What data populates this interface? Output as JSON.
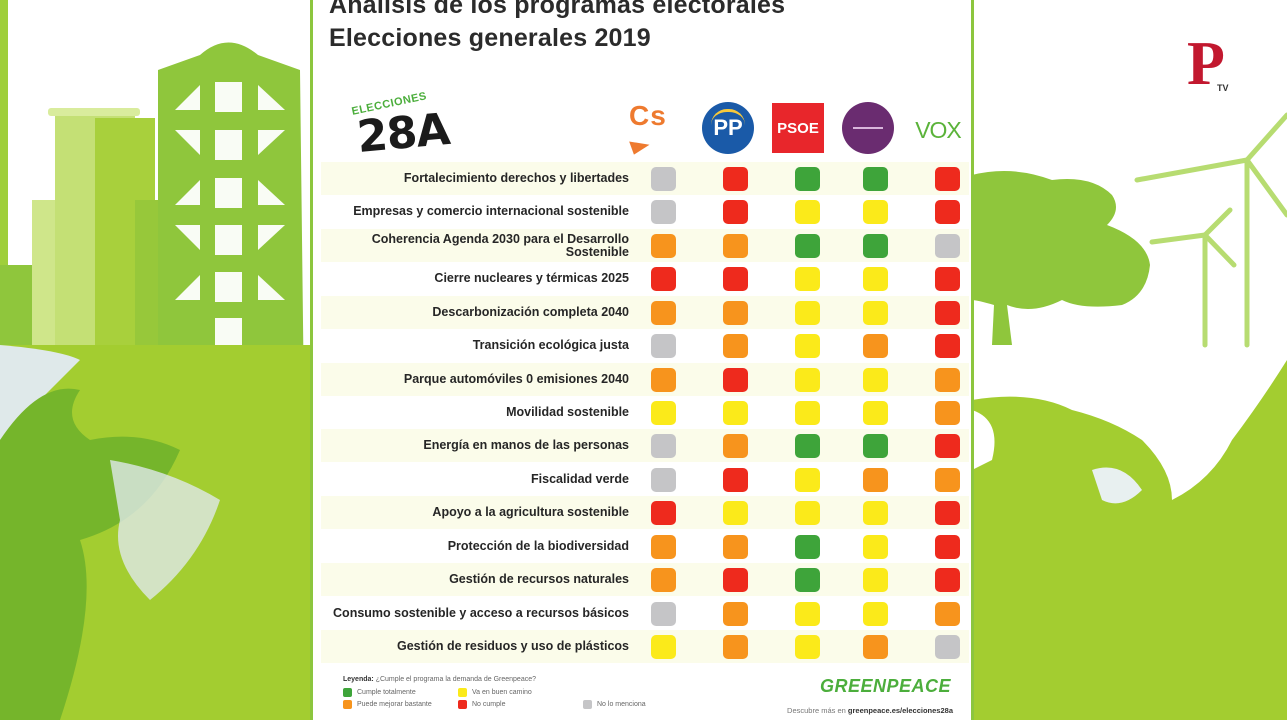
{
  "title": {
    "line1": "Análisis de los programas electorales",
    "line2": "Elecciones generales 2019"
  },
  "badge": {
    "small": "ELECCIONES",
    "big": "28A"
  },
  "parties": [
    {
      "id": "cs",
      "label": "Cs",
      "color": "#ee7a2f"
    },
    {
      "id": "pp",
      "label": "PP",
      "color": "#1a5aa8"
    },
    {
      "id": "psoe",
      "label": "PSOE",
      "color": "#e8262b"
    },
    {
      "id": "podemos",
      "label": "PODEMOS",
      "color": "#6a2c70"
    },
    {
      "id": "vox",
      "label": "VOX",
      "color": "#5bb33a"
    }
  ],
  "ratings": {
    "green": {
      "label": "Cumple totalmente",
      "color": "#3ea43a"
    },
    "yellow": {
      "label": "Va en buen camino",
      "color": "#fbea1a"
    },
    "orange": {
      "label": "Puede mejorar bastante",
      "color": "#f7941d"
    },
    "red": {
      "label": "No cumple",
      "color": "#ee2a1d"
    },
    "gray": {
      "label": "No lo menciona",
      "color": "#c5c5c7"
    }
  },
  "chart_data": {
    "type": "table",
    "title": "Análisis de los programas electorales — Elecciones generales 2019",
    "columns": [
      "Cs",
      "PP",
      "PSOE",
      "Podemos",
      "VOX"
    ],
    "rows": [
      {
        "topic": "Fortalecimiento derechos y libertades",
        "values": [
          "gray",
          "red",
          "green",
          "green",
          "red"
        ]
      },
      {
        "topic": "Empresas y comercio internacional sostenible",
        "values": [
          "gray",
          "red",
          "yellow",
          "yellow",
          "red"
        ]
      },
      {
        "topic": "Coherencia Agenda 2030 para el Desarrollo Sostenible",
        "values": [
          "orange",
          "orange",
          "green",
          "green",
          "gray"
        ]
      },
      {
        "topic": "Cierre nucleares y térmicas 2025",
        "values": [
          "red",
          "red",
          "yellow",
          "yellow",
          "red"
        ]
      },
      {
        "topic": "Descarbonización completa 2040",
        "values": [
          "orange",
          "orange",
          "yellow",
          "yellow",
          "red"
        ]
      },
      {
        "topic": "Transición ecológica justa",
        "values": [
          "gray",
          "orange",
          "yellow",
          "orange",
          "red"
        ]
      },
      {
        "topic": "Parque automóviles 0 emisiones 2040",
        "values": [
          "orange",
          "red",
          "yellow",
          "yellow",
          "orange"
        ]
      },
      {
        "topic": "Movilidad sostenible",
        "values": [
          "yellow",
          "yellow",
          "yellow",
          "yellow",
          "orange"
        ]
      },
      {
        "topic": "Energía en manos de las personas",
        "values": [
          "gray",
          "orange",
          "green",
          "green",
          "red"
        ]
      },
      {
        "topic": "Fiscalidad verde",
        "values": [
          "gray",
          "red",
          "yellow",
          "orange",
          "orange"
        ]
      },
      {
        "topic": "Apoyo a la agricultura sostenible",
        "values": [
          "red",
          "yellow",
          "yellow",
          "yellow",
          "red"
        ]
      },
      {
        "topic": "Protección de la biodiversidad",
        "values": [
          "orange",
          "orange",
          "green",
          "yellow",
          "red"
        ]
      },
      {
        "topic": "Gestión de recursos naturales",
        "values": [
          "orange",
          "red",
          "green",
          "yellow",
          "red"
        ]
      },
      {
        "topic": "Consumo sostenible y acceso a recursos básicos",
        "values": [
          "gray",
          "orange",
          "yellow",
          "yellow",
          "orange"
        ]
      },
      {
        "topic": "Gestión de residuos y uso de plásticos",
        "values": [
          "yellow",
          "orange",
          "yellow",
          "orange",
          "gray"
        ]
      }
    ],
    "legend": {
      "title": "Leyenda:",
      "question": "¿Cumple el programa la demanda de Greenpeace?",
      "entries": [
        {
          "key": "green",
          "label": "Cumple totalmente"
        },
        {
          "key": "yellow",
          "label": "Va en buen camino"
        },
        {
          "key": "orange",
          "label": "Puede mejorar bastante"
        },
        {
          "key": "red",
          "label": "No cumple"
        },
        {
          "key": "gray",
          "label": "No lo menciona"
        }
      ]
    }
  },
  "footer": {
    "brand": "GREENPEACE",
    "discover_prefix": "Descubre más en",
    "discover_url_text": "greenpeace.es/elecciones28a"
  },
  "watermark": {
    "letter": "P",
    "suffix": "TV"
  }
}
